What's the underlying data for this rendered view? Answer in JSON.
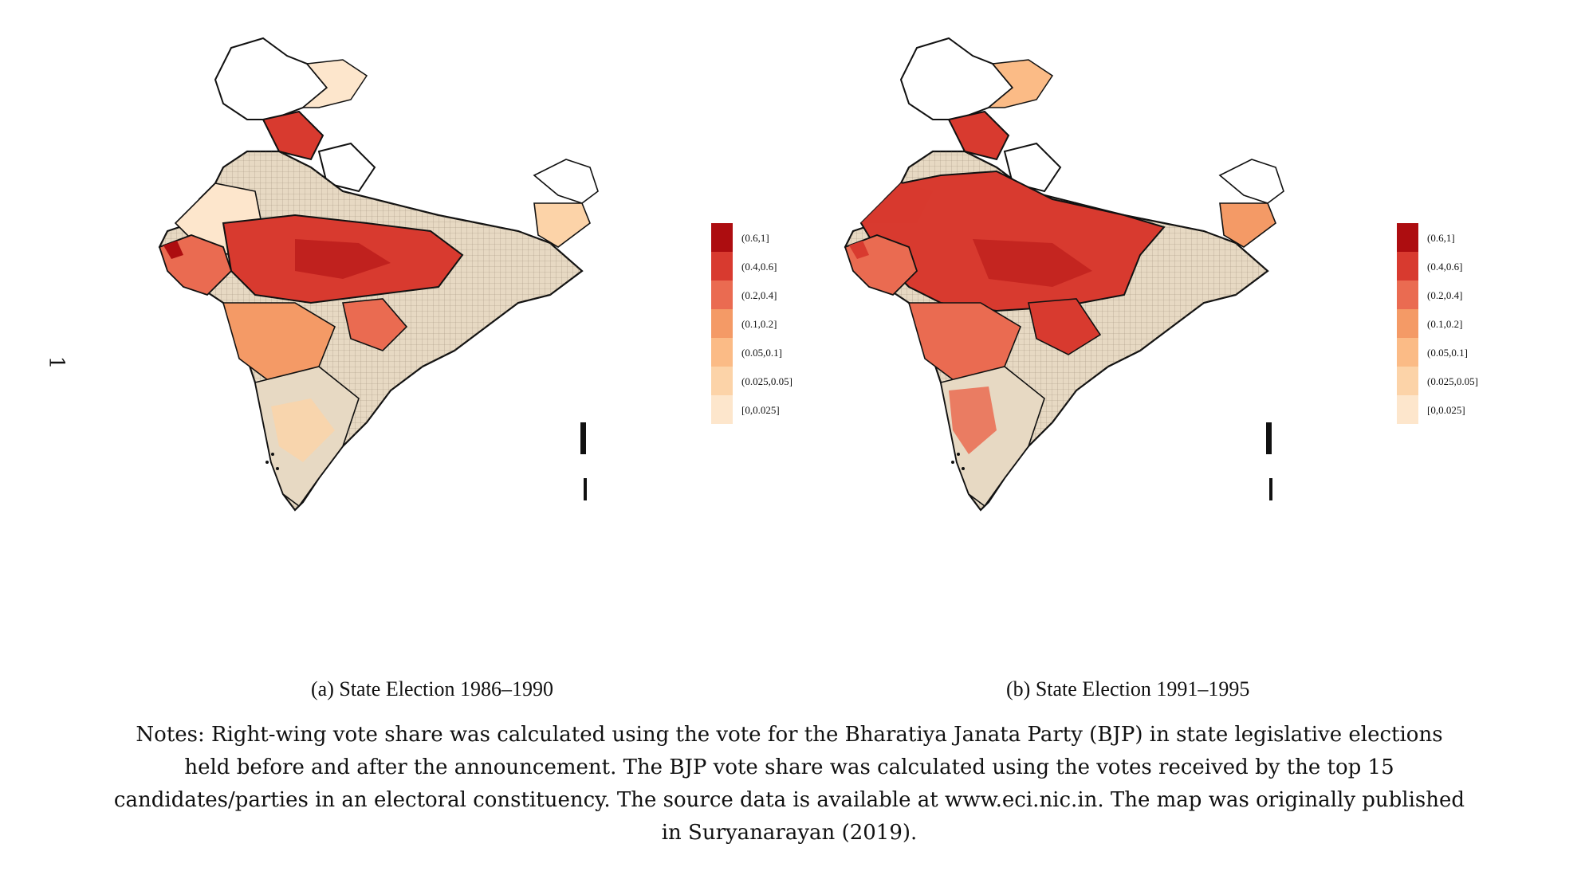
{
  "page_number": "1",
  "colors": {
    "c0": "#fde6cc",
    "c1": "#fcd3a8",
    "c2": "#fbbb86",
    "c3": "#f49a66",
    "c4": "#ea6b51",
    "c5": "#d83a2f",
    "c6": "#ad0d10",
    "base": "#e7d9c3",
    "border": "#111111",
    "nodata": "#ffffff"
  },
  "legend": [
    {
      "label": "(0.6,1]",
      "color": "#ad0d10"
    },
    {
      "label": "(0.4,0.6]",
      "color": "#d83a2f"
    },
    {
      "label": "(0.2,0.4]",
      "color": "#ea6b51"
    },
    {
      "label": "(0.1,0.2]",
      "color": "#f49a66"
    },
    {
      "label": "(0.05,0.1]",
      "color": "#fbbb86"
    },
    {
      "label": "(0.025,0.05]",
      "color": "#fcd3a8"
    },
    {
      "label": "[0,0.025]",
      "color": "#fde6cc"
    }
  ],
  "maps": [
    {
      "caption": "(a) State Election 1986–1990"
    },
    {
      "caption": "(b) State Election 1991–1995"
    }
  ],
  "notes": "Notes: Right-wing vote share was calculated using the vote for the Bharatiya Janata Party (BJP) in state legislative elections held before and after the announcement. The BJP vote share was calculated using the votes received by the top 15 candidates/parties in an electoral constituency. The source data is available at www.eci.nic.in. The map was originally published in Suryanarayan (2019)."
}
